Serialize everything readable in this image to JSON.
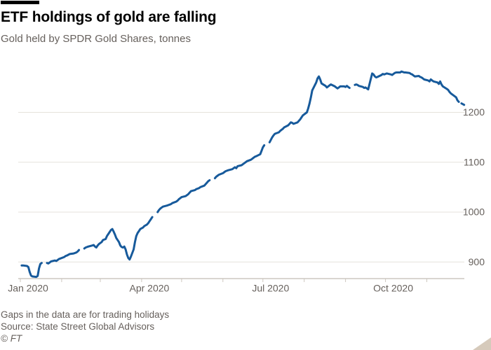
{
  "header": {
    "title": "ETF holdings of gold are falling",
    "subtitle": "Gold held by SPDR Gold Shares, tonnes"
  },
  "footer": {
    "note": "Gaps in the data are for trading holidays",
    "source": "Source: State Street Global Advisors",
    "copyright": "© FT"
  },
  "colors": {
    "line": "#175a9b",
    "grid": "#e6e2db",
    "axis": "#b3aba2",
    "tick": "#cdc7bf",
    "text_muted": "#66605c",
    "title_text": "#000000",
    "title_bar": "#000000",
    "background": "#ffffff",
    "resize_handle": "#d6cabb"
  },
  "chart_data": {
    "type": "line",
    "title": "ETF holdings of gold are falling",
    "subtitle": "Gold held by SPDR Gold Shares, tonnes",
    "unit": "tonnes",
    "grid": "horizontal",
    "legend": "none",
    "y_axis_side": "right",
    "y_ticks": [
      900,
      1000,
      1100,
      1200
    ],
    "ylim": [
      866,
      1300
    ],
    "x_range": [
      "Jan 2020",
      "Nov 2020"
    ],
    "x_labeled_ticks": [
      {
        "day": 1,
        "label": "Jan 2020"
      },
      {
        "day": 92,
        "label": "Apr 2020"
      },
      {
        "day": 183,
        "label": "Jul 2020"
      },
      {
        "day": 275,
        "label": "Oct 2020"
      }
    ],
    "x_minor_tick_days": [
      1,
      32,
      61,
      92,
      122,
      153,
      183,
      214,
      245,
      275,
      306
    ],
    "gaps_note": "Line breaks correspond to US trading holidays",
    "series": [
      {
        "name": "Gold held by SPDR Gold Shares",
        "unit": "tonnes",
        "x_unit": "day_of_year_2020",
        "segments": [
          [
            [
              2,
              893
            ],
            [
              3,
              893
            ],
            [
              6,
              892
            ],
            [
              7,
              890
            ],
            [
              8,
              880
            ],
            [
              9,
              873
            ],
            [
              10,
              871
            ],
            [
              13,
              870
            ],
            [
              14,
              872
            ],
            [
              15,
              887
            ],
            [
              16,
              896
            ],
            [
              17,
              898
            ]
          ],
          [
            [
              21,
              898
            ],
            [
              22,
              897
            ],
            [
              23,
              899
            ],
            [
              24,
              901
            ],
            [
              27,
              903
            ],
            [
              28,
              902
            ],
            [
              29,
              904
            ],
            [
              30,
              906
            ],
            [
              31,
              907
            ],
            [
              34,
              910
            ],
            [
              35,
              912
            ],
            [
              36,
              913
            ],
            [
              38,
              916
            ],
            [
              41,
              917
            ],
            [
              43,
              919
            ],
            [
              44,
              921
            ],
            [
              45,
              924
            ]
          ],
          [
            [
              49,
              927
            ],
            [
              50,
              929
            ],
            [
              51,
              930
            ],
            [
              52,
              931
            ],
            [
              55,
              933
            ],
            [
              56,
              934
            ],
            [
              57,
              931
            ],
            [
              58,
              929
            ],
            [
              59,
              933
            ],
            [
              60,
              936
            ],
            [
              62,
              940
            ],
            [
              63,
              944
            ],
            [
              65,
              946
            ],
            [
              66,
              952
            ],
            [
              68,
              960
            ],
            [
              69,
              964
            ],
            [
              70,
              966
            ],
            [
              71,
              961
            ],
            [
              72,
              955
            ],
            [
              73,
              948
            ],
            [
              75,
              940
            ],
            [
              76,
              933
            ],
            [
              77,
              930
            ],
            [
              78,
              929
            ],
            [
              79,
              931
            ],
            [
              80,
              925
            ],
            [
              81,
              915
            ],
            [
              82,
              908
            ],
            [
              83,
              905
            ],
            [
              84,
              911
            ],
            [
              86,
              925
            ],
            [
              87,
              940
            ],
            [
              88,
              952
            ],
            [
              89,
              958
            ],
            [
              90,
              962
            ],
            [
              91,
              966
            ],
            [
              93,
              969
            ],
            [
              94,
              972
            ],
            [
              96,
              975
            ],
            [
              97,
              978
            ],
            [
              98,
              982
            ],
            [
              99,
              986
            ],
            [
              100,
              990
            ]
          ],
          [
            [
              104,
              1000
            ],
            [
              105,
              1004
            ],
            [
              106,
              1007
            ],
            [
              107,
              1009
            ],
            [
              108,
              1011
            ],
            [
              111,
              1013
            ],
            [
              112,
              1014
            ],
            [
              113,
              1015
            ],
            [
              114,
              1016
            ],
            [
              115,
              1018
            ],
            [
              118,
              1021
            ],
            [
              119,
              1023
            ],
            [
              120,
              1026
            ],
            [
              121,
              1028
            ],
            [
              122,
              1030
            ],
            [
              125,
              1032
            ],
            [
              126,
              1034
            ],
            [
              127,
              1036
            ],
            [
              128,
              1039
            ],
            [
              129,
              1042
            ],
            [
              132,
              1044
            ],
            [
              133,
              1046
            ],
            [
              134,
              1047
            ],
            [
              135,
              1048
            ],
            [
              136,
              1050
            ],
            [
              139,
              1053
            ],
            [
              140,
              1056
            ],
            [
              141,
              1059
            ],
            [
              142,
              1062
            ],
            [
              143,
              1064
            ]
          ],
          [
            [
              147,
              1068
            ],
            [
              148,
              1071
            ],
            [
              149,
              1073
            ],
            [
              150,
              1075
            ],
            [
              153,
              1078
            ],
            [
              154,
              1080
            ],
            [
              155,
              1082
            ],
            [
              156,
              1083
            ],
            [
              157,
              1084
            ],
            [
              160,
              1086
            ],
            [
              161,
              1088
            ],
            [
              162,
              1090
            ],
            [
              163,
              1088
            ],
            [
              164,
              1092
            ],
            [
              167,
              1094
            ],
            [
              168,
              1096
            ],
            [
              169,
              1098
            ],
            [
              170,
              1100
            ],
            [
              171,
              1102
            ],
            [
              174,
              1105
            ],
            [
              175,
              1107
            ],
            [
              176,
              1109
            ],
            [
              177,
              1111
            ],
            [
              178,
              1112
            ],
            [
              181,
              1116
            ],
            [
              182,
              1123
            ],
            [
              183,
              1130
            ],
            [
              184,
              1134
            ]
          ],
          [
            [
              188,
              1140
            ],
            [
              189,
              1145
            ],
            [
              190,
              1150
            ],
            [
              191,
              1154
            ],
            [
              192,
              1157
            ],
            [
              195,
              1160
            ],
            [
              196,
              1163
            ],
            [
              197,
              1165
            ],
            [
              198,
              1167
            ],
            [
              199,
              1170
            ],
            [
              202,
              1174
            ],
            [
              203,
              1177
            ],
            [
              204,
              1180
            ],
            [
              205,
              1179
            ],
            [
              206,
              1177
            ],
            [
              209,
              1180
            ],
            [
              210,
              1183
            ],
            [
              211,
              1186
            ],
            [
              212,
              1190
            ],
            [
              213,
              1194
            ],
            [
              216,
              1200
            ],
            [
              217,
              1208
            ],
            [
              218,
              1218
            ],
            [
              219,
              1230
            ],
            [
              220,
              1244
            ],
            [
              223,
              1260
            ],
            [
              224,
              1268
            ],
            [
              225,
              1272
            ],
            [
              226,
              1266
            ],
            [
              227,
              1258
            ],
            [
              230,
              1253
            ],
            [
              231,
              1250
            ],
            [
              232,
              1252
            ],
            [
              233,
              1254
            ],
            [
              234,
              1256
            ],
            [
              237,
              1252
            ],
            [
              238,
              1250
            ],
            [
              239,
              1248
            ],
            [
              240,
              1250
            ],
            [
              241,
              1252
            ],
            [
              244,
              1252
            ],
            [
              245,
              1251
            ],
            [
              246,
              1253
            ],
            [
              247,
              1251
            ],
            [
              248,
              1249
            ]
          ],
          [
            [
              252,
              1255
            ],
            [
              253,
              1256
            ],
            [
              254,
              1255
            ],
            [
              255,
              1253
            ],
            [
              258,
              1251
            ],
            [
              259,
              1249
            ],
            [
              260,
              1250
            ],
            [
              261,
              1248
            ],
            [
              262,
              1246
            ],
            [
              265,
              1278
            ],
            [
              266,
              1276
            ],
            [
              267,
              1272
            ],
            [
              268,
              1270
            ],
            [
              269,
              1271
            ],
            [
              272,
              1275
            ],
            [
              273,
              1277
            ],
            [
              274,
              1276
            ],
            [
              275,
              1277
            ],
            [
              276,
              1278
            ],
            [
              279,
              1276
            ],
            [
              280,
              1275
            ],
            [
              281,
              1277
            ],
            [
              282,
              1279
            ],
            [
              283,
              1280
            ],
            [
              286,
              1280
            ],
            [
              287,
              1282
            ],
            [
              288,
              1281
            ],
            [
              289,
              1280
            ],
            [
              290,
              1280
            ],
            [
              293,
              1279
            ],
            [
              294,
              1277
            ],
            [
              295,
              1276
            ],
            [
              296,
              1274
            ],
            [
              297,
              1272
            ],
            [
              300,
              1273
            ],
            [
              301,
              1271
            ],
            [
              302,
              1270
            ],
            [
              303,
              1268
            ],
            [
              304,
              1266
            ],
            [
              307,
              1264
            ],
            [
              308,
              1262
            ],
            [
              309,
              1266
            ],
            [
              310,
              1264
            ],
            [
              311,
              1262
            ],
            [
              314,
              1260
            ],
            [
              315,
              1257
            ],
            [
              316,
              1262
            ],
            [
              317,
              1256
            ],
            [
              318,
              1252
            ],
            [
              321,
              1247
            ],
            [
              322,
              1245
            ],
            [
              323,
              1241
            ],
            [
              324,
              1238
            ],
            [
              325,
              1236
            ],
            [
              328,
              1230
            ],
            [
              329,
              1224
            ],
            [
              330,
              1221
            ]
          ],
          [
            [
              332,
              1218
            ],
            [
              334,
              1215
            ]
          ]
        ]
      }
    ]
  }
}
